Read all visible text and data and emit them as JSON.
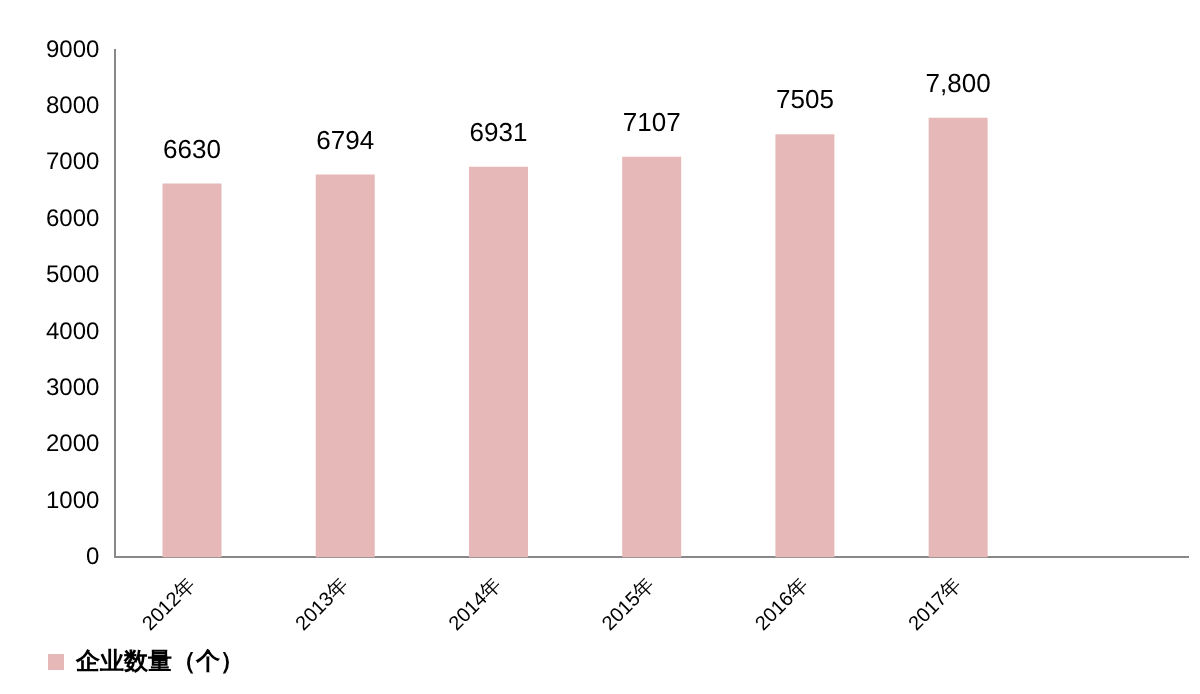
{
  "chart_data": {
    "type": "bar",
    "categories": [
      "2012年",
      "2013年",
      "2014年",
      "2015年",
      "2016年",
      "2017年",
      null
    ],
    "series": [
      {
        "name": "企业数量（个）",
        "color": "#e6b8b7",
        "values": [
          6630,
          6794,
          6931,
          7107,
          7505,
          7800,
          null
        ],
        "value_labels": [
          "6630",
          "6794",
          "6931",
          "7107",
          "7505",
          "7,800",
          null
        ]
      }
    ],
    "ylim": [
      0,
      9000
    ],
    "yticks": [
      0,
      1000,
      2000,
      3000,
      4000,
      5000,
      6000,
      7000,
      8000,
      9000
    ],
    "grid": false,
    "legend": "bottom left"
  }
}
